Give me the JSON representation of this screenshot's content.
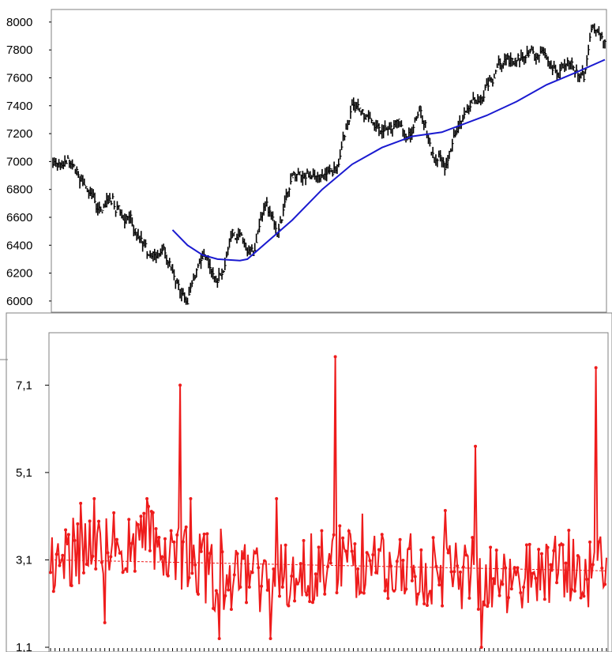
{
  "chart_data": [
    {
      "type": "line",
      "title": "",
      "xlabel": "",
      "ylabel": "",
      "ylim": [
        5920,
        8090
      ],
      "yticks": [
        "8000",
        "7800",
        "7600",
        "7400",
        "7200",
        "7000",
        "6800",
        "6600",
        "6400",
        "6200",
        "6000"
      ],
      "ytick_values": [
        8000,
        7800,
        7600,
        7400,
        7200,
        7000,
        6800,
        6600,
        6400,
        6200,
        6000
      ],
      "grid": false,
      "legend": "none",
      "x_count": 370,
      "series": [
        {
          "style": "high-low bars",
          "color": "#000000",
          "anchors_x": [
            0,
            10,
            20,
            30,
            40,
            55,
            65,
            75,
            90,
            100,
            110,
            120,
            135,
            143,
            150,
            160,
            170,
            180,
            190,
            200,
            210,
            220,
            230,
            240,
            245,
            255,
            262,
            270,
            280,
            290,
            300,
            310,
            320,
            330,
            337,
            345,
            355,
            360,
            365,
            369
          ],
          "anchors_y": [
            7000,
            7080,
            6820,
            6620,
            6720,
            6480,
            6270,
            6280,
            5980,
            6280,
            6120,
            6500,
            6380,
            6680,
            6550,
            6900,
            6960,
            6900,
            7020,
            7400,
            7300,
            7250,
            7330,
            7200,
            7340,
            7050,
            7000,
            7250,
            7400,
            7550,
            7700,
            7720,
            7780,
            7700,
            7620,
            7720,
            7620,
            7950,
            8000,
            7900
          ],
          "range_high": [
            5,
            55
          ],
          "range_low": [
            5,
            55
          ]
        },
        {
          "style": "moving average line",
          "color": "#1a1ad0",
          "x": [
            80,
            90,
            100,
            110,
            125,
            130,
            160,
            180,
            200,
            220,
            240,
            260,
            290,
            310,
            330,
            350,
            369
          ],
          "values": [
            6510,
            6400,
            6330,
            6300,
            6290,
            6300,
            6580,
            6800,
            6980,
            7100,
            7180,
            7210,
            7330,
            7430,
            7550,
            7640,
            7730
          ]
        }
      ]
    },
    {
      "type": "line",
      "title": "",
      "xlabel": "",
      "ylabel": "",
      "ylim": [
        1.1,
        8.3
      ],
      "yticks": [
        "7,1",
        "5,1",
        "3,1",
        "1,1"
      ],
      "ytick_values": [
        7.1,
        5.1,
        3.1,
        1.1
      ],
      "grid": false,
      "legend": "none",
      "x_count": 370,
      "series": [
        {
          "style": "line with point markers",
          "color": "#ee1c1c",
          "base_anchors_x": [
            0,
            60,
            120,
            180,
            240,
            300,
            369
          ],
          "base_anchors_y": [
            3.2,
            3.6,
            2.6,
            3.0,
            2.9,
            2.7,
            2.9
          ],
          "spikes": [
            {
              "i": 86,
              "value": 7.1
            },
            {
              "i": 189,
              "value": 7.75
            },
            {
              "i": 282,
              "value": 5.7
            },
            {
              "i": 362,
              "value": 7.5
            },
            {
              "i": 286,
              "value": 1.1
            }
          ]
        },
        {
          "style": "dashed reference line",
          "color": "#ee1c1c",
          "x": [
            0,
            369
          ],
          "values": [
            3.1,
            2.85
          ]
        }
      ]
    }
  ]
}
